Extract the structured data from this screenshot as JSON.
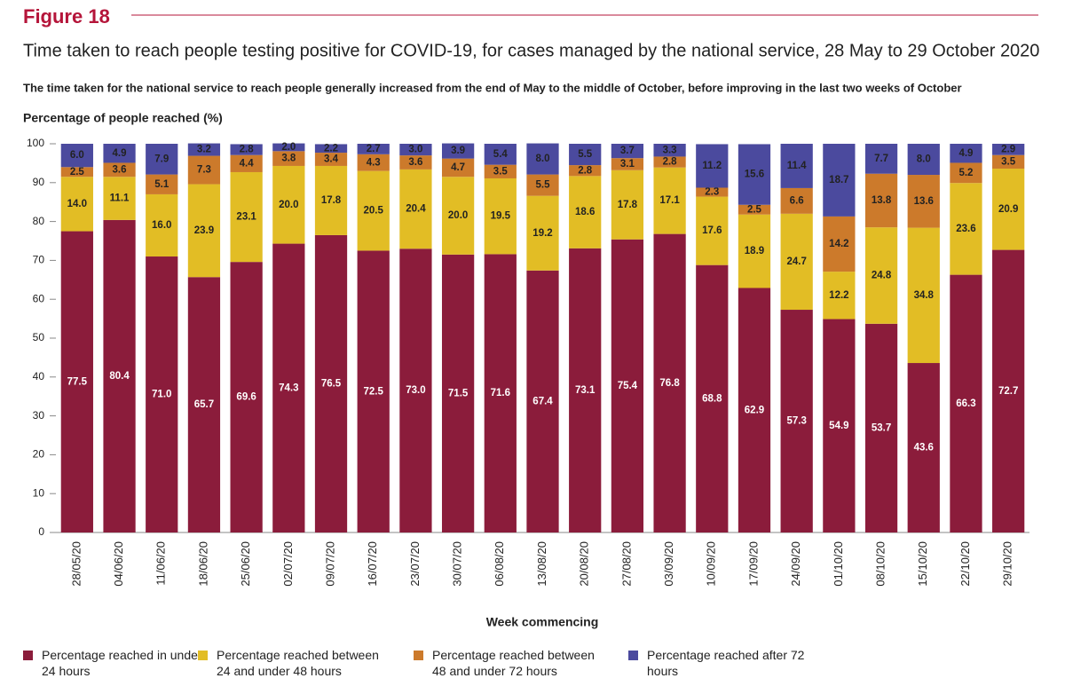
{
  "chart_data": {
    "type": "bar",
    "stacked": true,
    "title": "Figure 18",
    "subtitle": "Time taken to reach people testing positive for COVID-19, for cases managed by the national service, 28 May to 29 October 2020",
    "description": "The time taken for the national service to reach people generally increased from the end of May to the middle of October, before improving in the last two weeks of October",
    "ylabel": "Percentage of people reached (%)",
    "xlabel": "Week commencing",
    "ylim": [
      0,
      100
    ],
    "yticks": [
      0,
      10,
      20,
      30,
      40,
      50,
      60,
      70,
      80,
      90,
      100
    ],
    "categories": [
      "28/05/20",
      "04/06/20",
      "11/06/20",
      "18/06/20",
      "25/06/20",
      "02/07/20",
      "09/07/20",
      "16/07/20",
      "23/07/20",
      "30/07/20",
      "06/08/20",
      "13/08/20",
      "20/08/20",
      "27/08/20",
      "03/09/20",
      "10/09/20",
      "17/09/20",
      "24/09/20",
      "01/10/20",
      "08/10/20",
      "15/10/20",
      "22/10/20",
      "29/10/20"
    ],
    "series": [
      {
        "name": "Percentage reached in under 24 hours",
        "color": "#8b1c3b",
        "values": [
          77.5,
          80.4,
          71.0,
          65.7,
          69.6,
          74.3,
          76.5,
          72.5,
          73.0,
          71.5,
          71.6,
          67.4,
          73.1,
          75.4,
          76.8,
          68.8,
          62.9,
          57.3,
          54.9,
          53.7,
          43.6,
          66.3,
          72.7
        ],
        "value_labels": [
          "77.5",
          "80.4",
          "71.0",
          "65.7",
          "69.6",
          "74.3",
          "76.5",
          "72.5",
          "73.0",
          "71.5",
          "71.6",
          "67.4",
          "73.1",
          "75.4",
          "76.8",
          "68.8",
          "62.9",
          "57.3",
          "54.9",
          "53.7",
          "43.6",
          "66.3",
          "72.7"
        ]
      },
      {
        "name": "Percentage reached between 24 and under 48 hours",
        "color": "#e2bd25",
        "values": [
          14.0,
          11.1,
          16.0,
          23.9,
          23.1,
          20.0,
          17.8,
          20.5,
          20.4,
          20.0,
          19.5,
          19.2,
          18.6,
          17.8,
          17.1,
          17.6,
          18.9,
          24.7,
          12.2,
          24.8,
          34.8,
          23.6,
          20.9
        ],
        "value_labels": [
          "14.0",
          "11.1",
          "16.0",
          "23.9",
          "23.1",
          "20.0",
          "17.8",
          "20.5",
          "20.4",
          "20.0",
          "19.5",
          "19.2",
          "18.6",
          "17.8",
          "17.1",
          "17.6",
          "18.9",
          "24.7",
          "12.2",
          "24.8",
          "34.8",
          "23.6",
          "20.9"
        ]
      },
      {
        "name": "Percentage reached between 48 and under 72 hours",
        "color": "#cc7a2b",
        "values": [
          2.5,
          3.6,
          5.1,
          7.3,
          4.4,
          3.8,
          3.4,
          4.3,
          3.6,
          4.7,
          3.5,
          5.5,
          2.8,
          3.1,
          2.8,
          2.3,
          2.5,
          6.6,
          14.2,
          13.8,
          13.6,
          5.2,
          3.5
        ],
        "value_labels": [
          "2.5",
          "3.6",
          "5.1",
          "7.3",
          "4.4",
          "3.8",
          "3.4",
          "4.3",
          "3.6",
          "4.7",
          "3.5",
          "5.5",
          "2.8",
          "3.1",
          "2.8",
          "2.3",
          "2.5",
          "6.6",
          "14.2",
          "13.8",
          "13.6",
          "5.2",
          "3.5"
        ]
      },
      {
        "name": "Percentage reached after 72 hours",
        "color": "#4b4a9e",
        "values": [
          6.0,
          4.9,
          7.9,
          3.2,
          2.8,
          2.0,
          2.2,
          2.7,
          3.0,
          3.9,
          5.4,
          8.0,
          5.5,
          3.7,
          3.3,
          11.2,
          15.6,
          11.4,
          18.7,
          7.7,
          8.0,
          4.9,
          2.9
        ],
        "value_labels": [
          "6.0",
          "4.9",
          "7.9",
          "3.2",
          "2.8",
          "2.0",
          "2.2",
          "2.7",
          "3.0",
          "3.9",
          "5.4",
          "8.0",
          "5.5",
          "3.7",
          "3.3",
          "11.2",
          "15.6",
          "11.4",
          "18.7",
          "7.7",
          "8.0",
          "4.9",
          "2.9"
        ]
      }
    ]
  }
}
